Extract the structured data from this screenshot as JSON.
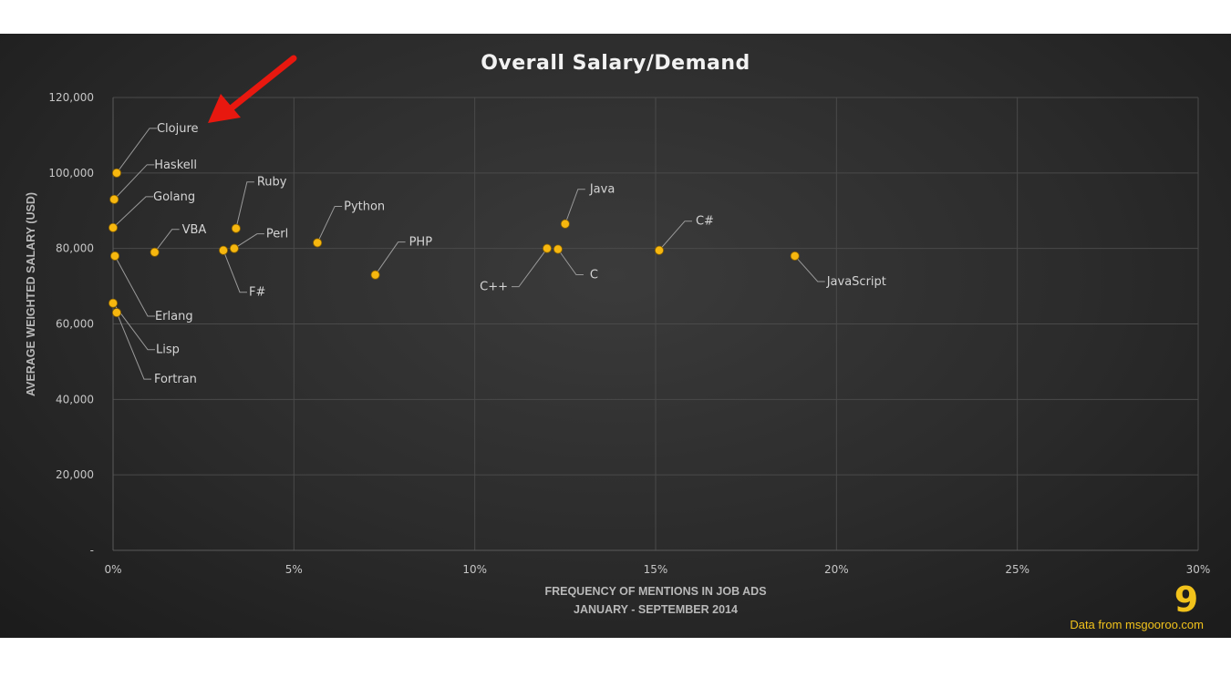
{
  "chart_data": {
    "type": "scatter",
    "title": "Overall  Salary/Demand",
    "xlabel": [
      "FREQUENCY OF MENTIONS IN JOB ADS",
      "JANUARY - SEPTEMBER 2014"
    ],
    "ylabel": "AVERAGE WEIGHTED SALARY (USD)",
    "xlim": [
      0,
      30
    ],
    "ylim": [
      0,
      120000
    ],
    "x_ticks": [
      "0%",
      "5%",
      "10%",
      "15%",
      "20%",
      "25%",
      "30%"
    ],
    "y_ticks": [
      "-",
      "20,000",
      "40,000",
      "60,000",
      "80,000",
      "100,000",
      "120,000"
    ],
    "grid": true,
    "points": [
      {
        "label": "Clojure",
        "x": 0.1,
        "y": 100000
      },
      {
        "label": "Haskell",
        "x": 0.03,
        "y": 93000
      },
      {
        "label": "Golang",
        "x": 0.0,
        "y": 85500
      },
      {
        "label": "Erlang",
        "x": 0.05,
        "y": 78000
      },
      {
        "label": "Lisp",
        "x": 0.0,
        "y": 65500
      },
      {
        "label": "Fortran",
        "x": 0.1,
        "y": 63000
      },
      {
        "label": "VBA",
        "x": 1.15,
        "y": 79000
      },
      {
        "label": "F#",
        "x": 3.05,
        "y": 79500
      },
      {
        "label": "Perl",
        "x": 3.35,
        "y": 80000
      },
      {
        "label": "Ruby",
        "x": 3.4,
        "y": 85300
      },
      {
        "label": "Python",
        "x": 5.65,
        "y": 81500
      },
      {
        "label": "PHP",
        "x": 7.25,
        "y": 73000
      },
      {
        "label": "C++",
        "x": 12.0,
        "y": 80000
      },
      {
        "label": "C",
        "x": 12.3,
        "y": 79800
      },
      {
        "label": "Java",
        "x": 12.5,
        "y": 86500
      },
      {
        "label": "C#",
        "x": 15.1,
        "y": 79500
      },
      {
        "label": "JavaScript",
        "x": 18.85,
        "y": 78000
      }
    ]
  },
  "source": {
    "logo_text": "9",
    "text": "Data from msgooroo.com"
  },
  "colors": {
    "point": "#f6b70f",
    "arrow": "#e8180f",
    "logo": "#f1c21b"
  }
}
